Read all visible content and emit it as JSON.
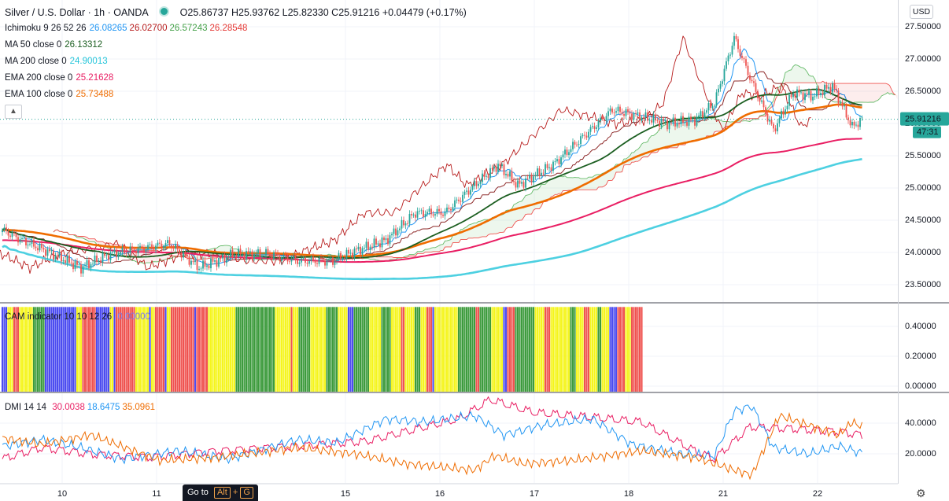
{
  "header": {
    "title": "Silver / U.S. Dollar · 1h · OANDA",
    "ohlc": "O25.86737 H25.93762 L25.82330 C25.91216 +0.04479 (+0.17%)"
  },
  "indicators": [
    {
      "label": "Ichimoku 9 26 52 26",
      "values": [
        "26.08265",
        "26.02700",
        "26.57243",
        "26.28548"
      ],
      "colors": [
        "#2196f3",
        "#b71c1c",
        "#43a047",
        "#e53935"
      ]
    },
    {
      "label": "MA 50 close 0",
      "values": [
        "26.13312"
      ],
      "colors": [
        "#1b5e20"
      ]
    },
    {
      "label": "MA 200 close 0",
      "values": [
        "24.90013"
      ],
      "colors": [
        "#26c6da"
      ]
    },
    {
      "label": "EMA 200 close 0",
      "values": [
        "25.21628"
      ],
      "colors": [
        "#e91e63"
      ]
    },
    {
      "label": "EMA 100 close 0",
      "values": [
        "25.73488"
      ],
      "colors": [
        "#ef6c00"
      ]
    }
  ],
  "cam_legend": {
    "label": "CAM indicator 10 10 12 26",
    "value": "0.00000"
  },
  "dmi_legend": {
    "label": "DMI 14 14",
    "values": [
      "30.0038",
      "18.6475",
      "35.0961"
    ],
    "colors": [
      "#e91e63",
      "#2196f3",
      "#ef6c00"
    ]
  },
  "currency": "USD",
  "last_price": "25.91216",
  "countdown": "47:31",
  "goto": {
    "label": "Go to",
    "key1": "Alt",
    "plus": "+",
    "key2": "G"
  },
  "colors": {
    "up": "#26a69a",
    "down": "#ef5350",
    "cam": [
      "#f5f51e",
      "#4c4cf0",
      "#ef5350",
      "#3d9b3d"
    ]
  },
  "chart_data": [
    {
      "type": "candlestick",
      "title": "Silver / U.S. Dollar · 1h · OANDA",
      "x_ticks": [
        "10",
        "11",
        "15",
        "16",
        "17",
        "18",
        "21",
        "22"
      ],
      "ylim": [
        23.25,
        27.65
      ],
      "y_ticks": [
        "27.50000",
        "27.00000",
        "26.50000",
        "26.00000",
        "25.50000",
        "25.00000",
        "24.50000",
        "24.00000",
        "23.50000"
      ],
      "anchors": [
        [
          0,
          24.3
        ],
        [
          10,
          24.15
        ],
        [
          22,
          24.0
        ],
        [
          40,
          23.75
        ],
        [
          55,
          23.95
        ],
        [
          75,
          24.05
        ],
        [
          85,
          24.1
        ],
        [
          100,
          23.75
        ],
        [
          118,
          23.95
        ],
        [
          135,
          23.95
        ],
        [
          150,
          23.85
        ],
        [
          168,
          23.85
        ],
        [
          180,
          24.0
        ],
        [
          195,
          24.15
        ],
        [
          210,
          24.55
        ],
        [
          225,
          24.55
        ],
        [
          238,
          24.9
        ],
        [
          252,
          25.25
        ],
        [
          262,
          24.95
        ],
        [
          280,
          25.25
        ],
        [
          295,
          25.65
        ],
        [
          310,
          26.05
        ],
        [
          325,
          25.95
        ],
        [
          338,
          25.85
        ],
        [
          352,
          25.9
        ],
        [
          362,
          26.15
        ],
        [
          372,
          27.1
        ],
        [
          381,
          26.45
        ],
        [
          392,
          25.75
        ],
        [
          402,
          26.3
        ],
        [
          412,
          26.25
        ],
        [
          422,
          26.4
        ],
        [
          432,
          25.8
        ],
        [
          437,
          25.91
        ]
      ]
    },
    {
      "type": "bar",
      "title": "CAM indicator 10 10 12 26",
      "ylim": [
        0,
        0.52
      ],
      "y_ticks": [
        "0.40000",
        "0.20000",
        "0.00000"
      ],
      "bar_value": 0.5,
      "categories": [
        "yellow",
        "blue",
        "red",
        "green"
      ],
      "sequence": [
        [
          1,
          3
        ],
        [
          0,
          3
        ],
        [
          2,
          3
        ],
        [
          0,
          7
        ],
        [
          3,
          6
        ],
        [
          1,
          16
        ],
        [
          0,
          3
        ],
        [
          2,
          7
        ],
        [
          1,
          7
        ],
        [
          0,
          2
        ],
        [
          1,
          1
        ],
        [
          2,
          10
        ],
        [
          0,
          7
        ],
        [
          1,
          1
        ],
        [
          0,
          2
        ],
        [
          2,
          5
        ],
        [
          1,
          1
        ],
        [
          0,
          2
        ],
        [
          2,
          12
        ],
        [
          1,
          1
        ],
        [
          2,
          6
        ],
        [
          0,
          14
        ],
        [
          3,
          20
        ],
        [
          0,
          8
        ],
        [
          2,
          1
        ],
        [
          0,
          3
        ],
        [
          3,
          6
        ],
        [
          0,
          8
        ],
        [
          3,
          6
        ],
        [
          0,
          5
        ],
        [
          1,
          3
        ],
        [
          3,
          8
        ],
        [
          0,
          6
        ],
        [
          3,
          5
        ],
        [
          0,
          5
        ],
        [
          2,
          2
        ],
        [
          0,
          5
        ],
        [
          3,
          3
        ],
        [
          0,
          3
        ],
        [
          2,
          3
        ],
        [
          1,
          1
        ],
        [
          0,
          12
        ],
        [
          3,
          9
        ],
        [
          2,
          2
        ],
        [
          3,
          6
        ],
        [
          0,
          6
        ],
        [
          1,
          2
        ],
        [
          2,
          4
        ],
        [
          3,
          10
        ],
        [
          0,
          5
        ],
        [
          2,
          3
        ],
        [
          0,
          10
        ],
        [
          3,
          3
        ],
        [
          0,
          4
        ],
        [
          2,
          3
        ],
        [
          0,
          4
        ],
        [
          3,
          2
        ],
        [
          0,
          4
        ],
        [
          1,
          4
        ],
        [
          2,
          4
        ],
        [
          0,
          3
        ],
        [
          2,
          6
        ]
      ]
    },
    {
      "type": "line",
      "title": "DMI 14 14",
      "ylim": [
        0,
        56
      ],
      "y_ticks": [
        "40.0000",
        "20.0000"
      ],
      "series": [
        {
          "name": "30.0038",
          "color": "#e91e63",
          "points": [
            [
              0,
              15
            ],
            [
              20,
              22
            ],
            [
              45,
              18
            ],
            [
              75,
              16
            ],
            [
              110,
              20
            ],
            [
              150,
              23
            ],
            [
              185,
              26
            ],
            [
              215,
              35
            ],
            [
              232,
              40
            ],
            [
              248,
              52
            ],
            [
              270,
              44
            ],
            [
              300,
              41
            ],
            [
              325,
              38
            ],
            [
              352,
              20
            ],
            [
              362,
              15
            ],
            [
              380,
              35
            ],
            [
              400,
              34
            ],
            [
              425,
              32
            ],
            [
              437,
              30
            ]
          ]
        },
        {
          "name": "18.6475",
          "color": "#2196f3",
          "points": [
            [
              0,
              23
            ],
            [
              20,
              27
            ],
            [
              40,
              22
            ],
            [
              60,
              15
            ],
            [
              90,
              20
            ],
            [
              115,
              15
            ],
            [
              150,
              27
            ],
            [
              170,
              25
            ],
            [
              195,
              40
            ],
            [
              215,
              38
            ],
            [
              240,
              42
            ],
            [
              255,
              30
            ],
            [
              275,
              36
            ],
            [
              300,
              40
            ],
            [
              320,
              24
            ],
            [
              345,
              18
            ],
            [
              362,
              17
            ],
            [
              372,
              45
            ],
            [
              381,
              48
            ],
            [
              392,
              22
            ],
            [
              410,
              18
            ],
            [
              425,
              23
            ],
            [
              437,
              18.6
            ]
          ]
        },
        {
          "name": "35.0961",
          "color": "#ef6c00",
          "points": [
            [
              0,
              28
            ],
            [
              20,
              24
            ],
            [
              45,
              30
            ],
            [
              80,
              14
            ],
            [
              110,
              16
            ],
            [
              150,
              22
            ],
            [
              180,
              18
            ],
            [
              205,
              12
            ],
            [
              240,
              8
            ],
            [
              250,
              17
            ],
            [
              265,
              12
            ],
            [
              290,
              14
            ],
            [
              325,
              20
            ],
            [
              352,
              16
            ],
            [
              362,
              12
            ],
            [
              372,
              8
            ],
            [
              381,
              5
            ],
            [
              395,
              42
            ],
            [
              410,
              36
            ],
            [
              425,
              30
            ],
            [
              432,
              38
            ],
            [
              437,
              35
            ]
          ]
        }
      ]
    }
  ]
}
